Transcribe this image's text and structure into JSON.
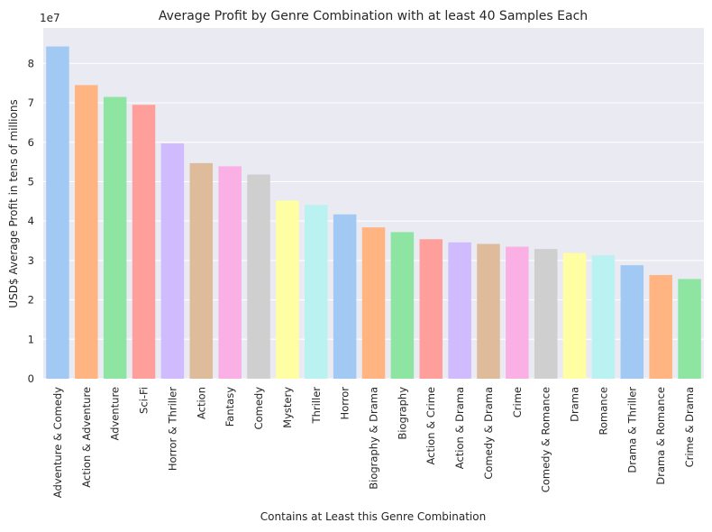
{
  "chart_data": {
    "type": "bar",
    "title": "Average Profit by Genre Combination with at least 40 Samples Each",
    "xlabel": "Contains at Least this Genre Combination",
    "ylabel": "USD$ Average Profit in tens of millions",
    "y_offset_label": "1e7",
    "ylim": [
      0,
      8.9
    ],
    "yticks": [
      "0",
      "1",
      "2",
      "3",
      "4",
      "5",
      "6",
      "7",
      "8"
    ],
    "grid": true,
    "legend": "none",
    "categories": [
      "Adventure & Comedy",
      "Action & Adventure",
      "Adventure",
      "Sci-Fi",
      "Horror & Thriller",
      "Action",
      "Fantasy",
      "Comedy",
      "Mystery",
      "Thriller",
      "Horror",
      "Biography & Drama",
      "Biography",
      "Action & Crime",
      "Action & Drama",
      "Comedy & Drama",
      "Crime",
      "Comedy & Romance",
      "Drama",
      "Romance",
      "Drama & Thriller",
      "Drama & Romance",
      "Crime & Drama"
    ],
    "values": [
      8.43,
      7.45,
      7.15,
      6.95,
      5.97,
      5.47,
      5.39,
      5.18,
      4.52,
      4.41,
      4.17,
      3.84,
      3.72,
      3.54,
      3.46,
      3.42,
      3.35,
      3.29,
      3.19,
      3.13,
      2.88,
      2.63,
      2.53
    ],
    "palette": [
      "#a1c9f4",
      "#ffb482",
      "#8de5a1",
      "#ff9f9b",
      "#d0bbff",
      "#debb9b",
      "#fab0e4",
      "#cfcfcf",
      "#fffea3",
      "#b9f2f0"
    ],
    "background_color": "#eaeaf2",
    "grid_color": "#ffffff"
  }
}
